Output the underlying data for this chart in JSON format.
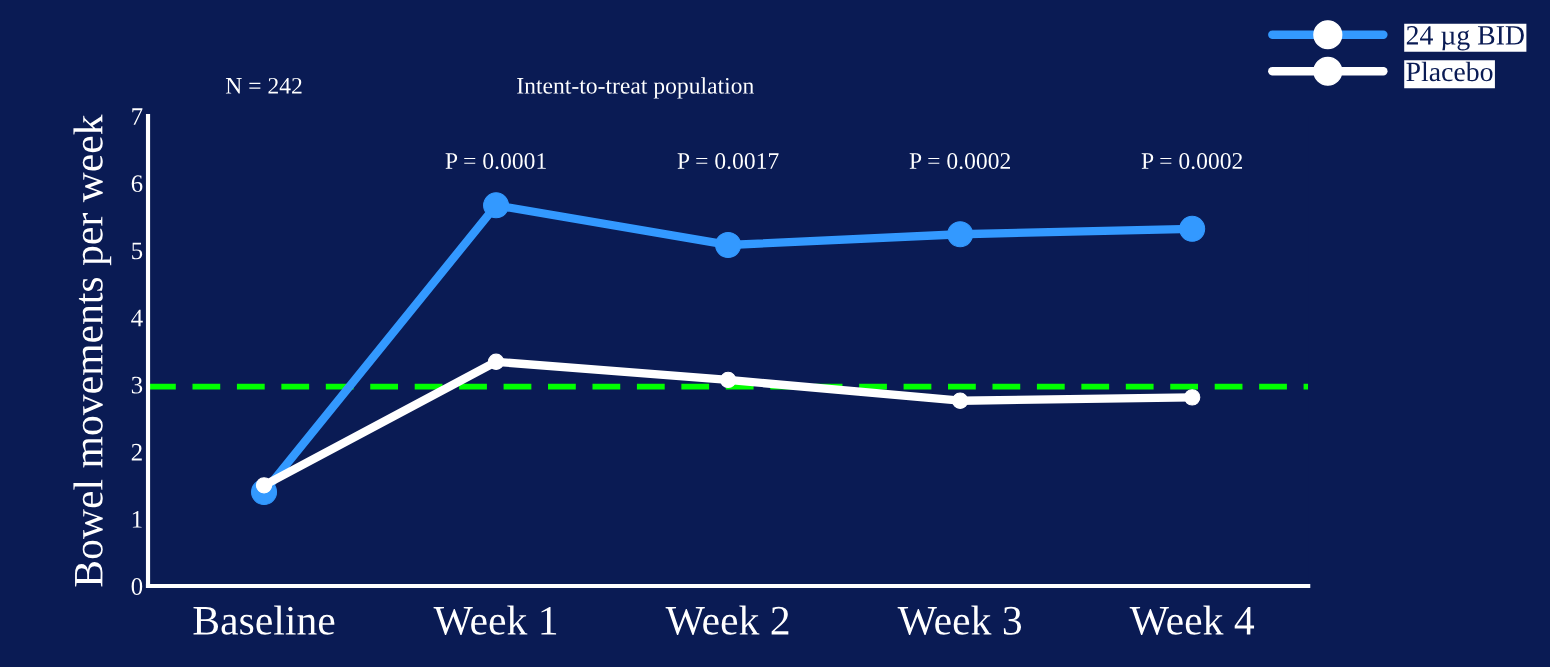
{
  "chart_data": {
    "type": "line",
    "ylabel": "Bowel movements per week",
    "categories": [
      "Baseline",
      "Week 1",
      "Week 2",
      "Week 3",
      "Week 4"
    ],
    "series": [
      {
        "name": "24 µg BID",
        "color": "#3399ff",
        "values": [
          1.4,
          5.67,
          5.08,
          5.24,
          5.32
        ]
      },
      {
        "name": "Placebo",
        "color": "#ffffff",
        "values": [
          1.5,
          3.34,
          3.07,
          2.76,
          2.81
        ]
      }
    ],
    "ylim": [
      0,
      7
    ],
    "yticks": [
      0,
      1,
      2,
      3,
      4,
      5,
      6,
      7
    ],
    "ref_lines": [
      {
        "axis": "y",
        "value": 2.97,
        "color": "#00ff00",
        "line_style": "dashed"
      }
    ],
    "annotations": [
      "N = 242",
      "Intent-to-treat population",
      "P = 0.0001",
      "P = 0.0017",
      "P = 0.0002",
      "P = 0.0002"
    ],
    "marker": "circle",
    "line_style": "solid",
    "grid": false,
    "legend": "top right"
  }
}
